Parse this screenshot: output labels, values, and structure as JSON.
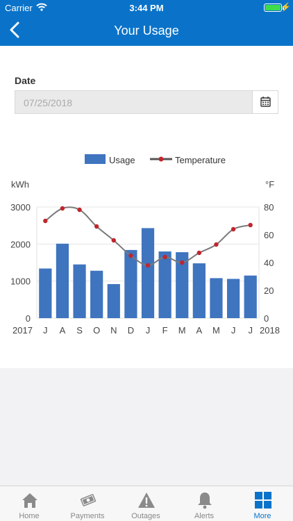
{
  "status": {
    "carrier": "Carrier",
    "time": "3:44 PM"
  },
  "header": {
    "title": "Your Usage"
  },
  "form": {
    "date_label": "Date",
    "date_value": "07/25/2018"
  },
  "legend": {
    "usage": "Usage",
    "temperature": "Temperature"
  },
  "chart_data": {
    "type": "bar",
    "left_unit": "kWh",
    "right_unit": "°F",
    "left_ticks": [
      "3000",
      "2000",
      "1000",
      "0"
    ],
    "right_ticks": [
      "80",
      "60",
      "40",
      "20",
      "0"
    ],
    "start_year": "2017",
    "end_year": "2018",
    "categories": [
      "J",
      "A",
      "S",
      "O",
      "N",
      "D",
      "J",
      "F",
      "M",
      "A",
      "M",
      "J",
      "J"
    ],
    "ylim": [
      0,
      3000
    ],
    "y2lim": [
      0,
      80
    ],
    "grid": true,
    "legend_position": "top-center",
    "series": [
      {
        "name": "Usage",
        "type": "bar",
        "axis": "left",
        "values": [
          1340,
          2010,
          1450,
          1280,
          920,
          1840,
          2430,
          1800,
          1780,
          1480,
          1080,
          1060,
          1150
        ]
      },
      {
        "name": "Temperature",
        "type": "line",
        "axis": "right",
        "values": [
          70,
          79,
          78,
          66,
          56,
          45,
          38,
          44,
          40,
          47,
          53,
          64,
          67
        ]
      }
    ],
    "colors": {
      "bar": "#3f74bf",
      "line": "#7a7a7a",
      "point": "#c0262d"
    }
  },
  "tabs": [
    {
      "label": "Home",
      "icon": "home-icon"
    },
    {
      "label": "Payments",
      "icon": "payments-icon"
    },
    {
      "label": "Outages",
      "icon": "warning-icon"
    },
    {
      "label": "Alerts",
      "icon": "bell-icon"
    },
    {
      "label": "More",
      "icon": "grid-icon"
    }
  ],
  "colors": {
    "brand": "#0a73c9",
    "active_tab": "#0a73c9",
    "inactive_tab": "#888888"
  }
}
